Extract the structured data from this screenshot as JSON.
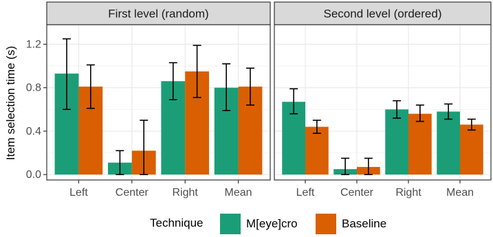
{
  "chart_data": {
    "type": "bar",
    "ylabel": "Item selection time (s)",
    "ylim": [
      -0.05,
      1.38
    ],
    "yticks": [
      0.0,
      0.4,
      0.8,
      1.2
    ],
    "ytick_labels": [
      "0.0",
      "0.4",
      "0.8",
      "1.2"
    ],
    "grid": true,
    "categories": [
      "Left",
      "Center",
      "Right",
      "Mean"
    ],
    "legend": {
      "title": "Technique",
      "position": "bottom"
    },
    "series_info": [
      {
        "name": "M[eye]cro",
        "color": "#1b9e77"
      },
      {
        "name": "Baseline",
        "color": "#d95f02"
      }
    ],
    "panels": [
      {
        "title": "First level (random)",
        "series": [
          {
            "name": "M[eye]cro",
            "values": [
              0.93,
              0.11,
              0.86,
              0.8
            ],
            "err_low": [
              0.6,
              0.0,
              0.69,
              0.59
            ],
            "err_high": [
              1.25,
              0.22,
              1.03,
              1.02
            ]
          },
          {
            "name": "Baseline",
            "values": [
              0.81,
              0.22,
              0.95,
              0.81
            ],
            "err_low": [
              0.61,
              0.0,
              0.71,
              0.64
            ],
            "err_high": [
              1.01,
              0.5,
              1.19,
              0.98
            ]
          }
        ]
      },
      {
        "title": "Second level (ordered)",
        "series": [
          {
            "name": "M[eye]cro",
            "values": [
              0.67,
              0.05,
              0.6,
              0.58
            ],
            "err_low": [
              0.56,
              0.0,
              0.52,
              0.51
            ],
            "err_high": [
              0.79,
              0.15,
              0.68,
              0.65
            ]
          },
          {
            "name": "Baseline",
            "values": [
              0.44,
              0.07,
              0.56,
              0.46
            ],
            "err_low": [
              0.38,
              0.0,
              0.49,
              0.41
            ],
            "err_high": [
              0.5,
              0.15,
              0.64,
              0.51
            ]
          }
        ]
      }
    ]
  }
}
